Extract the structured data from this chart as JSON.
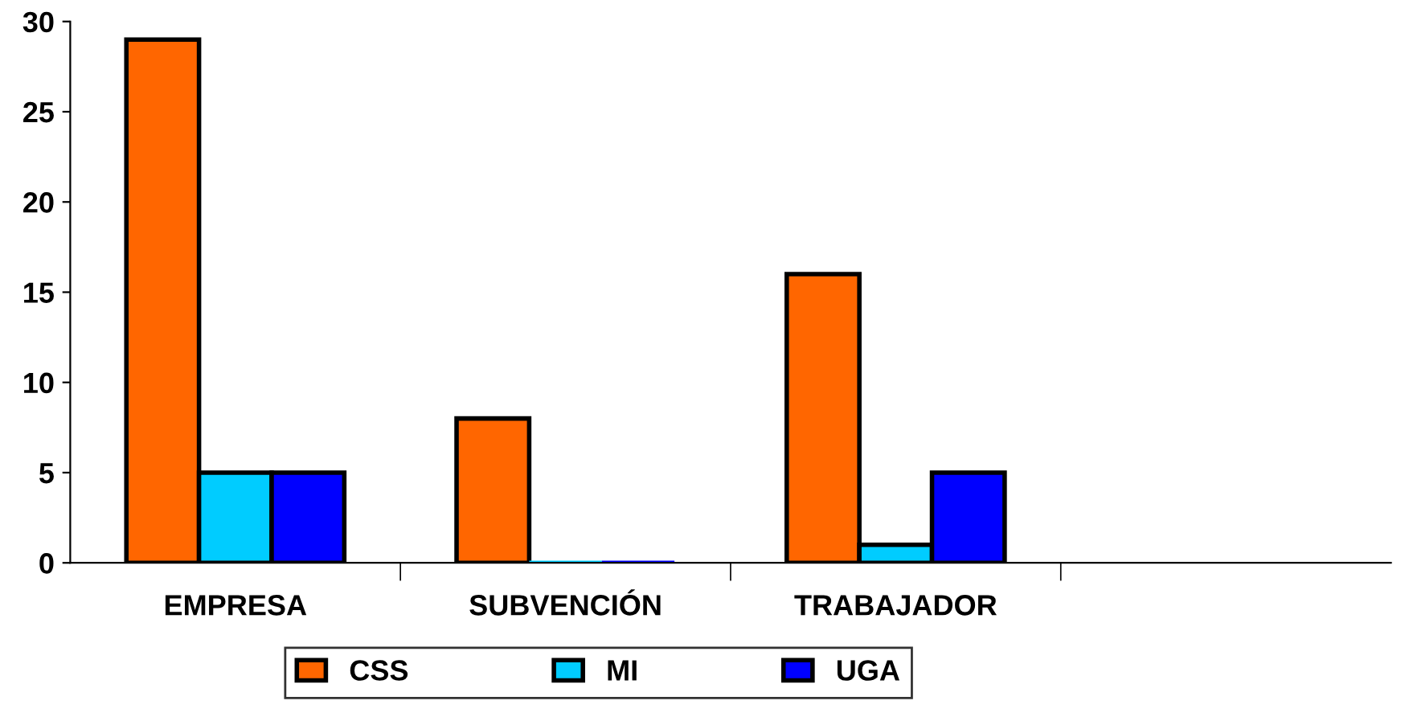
{
  "chart_data": {
    "type": "bar",
    "categories": [
      "EMPRESA",
      "SUBVENCIÓN",
      "TRABAJADOR",
      null
    ],
    "series": [
      {
        "name": "CSS",
        "color": "#ff6600",
        "values": [
          29,
          8,
          16,
          null
        ]
      },
      {
        "name": "MI",
        "color": "#00ccff",
        "values": [
          5,
          0,
          1,
          null
        ]
      },
      {
        "name": "UGA",
        "color": "#0000ff",
        "values": [
          5,
          0,
          5,
          null
        ]
      }
    ],
    "ylim": [
      0,
      30
    ],
    "yticks": [
      0,
      5,
      10,
      15,
      20,
      25,
      30
    ],
    "grid": false,
    "legend": "bottom"
  }
}
